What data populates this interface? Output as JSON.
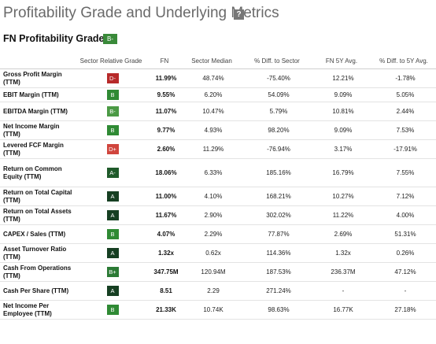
{
  "header": {
    "title": "Profitability Grade and Underlying Metrics",
    "help_icon": "?",
    "subtitle": "FN Profitability Grade",
    "overall_grade": "B-",
    "overall_grade_color": "#3a8a3a"
  },
  "table": {
    "columns": [
      "",
      "Sector Relative Grade",
      "FN",
      "Sector Median",
      "% Diff. to Sector",
      "FN 5Y Avg.",
      "% Diff. to 5Y Avg."
    ],
    "rows": [
      {
        "metric": "Gross Profit Margin (TTM)",
        "grade": "D-",
        "grade_color": "#b72a2a",
        "fn": "11.99%",
        "sector_median": "48.74%",
        "diff_sector": "-75.40%",
        "avg_5y": "12.21%",
        "diff_5y": "-1.78%"
      },
      {
        "metric": "EBIT Margin (TTM)",
        "grade": "B",
        "grade_color": "#2f8a34",
        "fn": "9.55%",
        "sector_median": "6.20%",
        "diff_sector": "54.09%",
        "avg_5y": "9.09%",
        "diff_5y": "5.05%"
      },
      {
        "metric": "EBITDA Margin (TTM)",
        "grade": "B-",
        "grade_color": "#4b9a45",
        "fn": "11.07%",
        "sector_median": "10.47%",
        "diff_sector": "5.79%",
        "avg_5y": "10.81%",
        "diff_5y": "2.44%"
      },
      {
        "metric": "Net Income Margin (TTM)",
        "grade": "B",
        "grade_color": "#2f8a34",
        "fn": "9.77%",
        "sector_median": "4.93%",
        "diff_sector": "98.20%",
        "avg_5y": "9.09%",
        "diff_5y": "7.53%"
      },
      {
        "metric": "Levered FCF Margin (TTM)",
        "grade": "D+",
        "grade_color": "#d0453d",
        "fn": "2.60%",
        "sector_median": "11.29%",
        "diff_sector": "-76.94%",
        "avg_5y": "3.17%",
        "diff_5y": "-17.91%"
      },
      {
        "metric": "Return on Common Equity (TTM)",
        "grade": "A-",
        "grade_color": "#1f5a2a",
        "fn": "18.06%",
        "sector_median": "6.33%",
        "diff_sector": "185.16%",
        "avg_5y": "16.79%",
        "diff_5y": "7.55%"
      },
      {
        "metric": "Return on Total Capital (TTM)",
        "grade": "A",
        "grade_color": "#163f22",
        "fn": "11.00%",
        "sector_median": "4.10%",
        "diff_sector": "168.21%",
        "avg_5y": "10.27%",
        "diff_5y": "7.12%"
      },
      {
        "metric": "Return on Total Assets (TTM)",
        "grade": "A",
        "grade_color": "#163f22",
        "fn": "11.67%",
        "sector_median": "2.90%",
        "diff_sector": "302.02%",
        "avg_5y": "11.22%",
        "diff_5y": "4.00%"
      },
      {
        "metric": "CAPEX / Sales (TTM)",
        "grade": "B",
        "grade_color": "#2f8a34",
        "fn": "4.07%",
        "sector_median": "2.29%",
        "diff_sector": "77.87%",
        "avg_5y": "2.69%",
        "diff_5y": "51.31%"
      },
      {
        "metric": "Asset Turnover Ratio (TTM)",
        "grade": "A",
        "grade_color": "#163f22",
        "fn": "1.32x",
        "sector_median": "0.62x",
        "diff_sector": "114.36%",
        "avg_5y": "1.32x",
        "diff_5y": "0.26%"
      },
      {
        "metric": "Cash From Operations (TTM)",
        "grade": "B+",
        "grade_color": "#2b7a35",
        "fn": "347.75M",
        "sector_median": "120.94M",
        "diff_sector": "187.53%",
        "avg_5y": "236.37M",
        "diff_5y": "47.12%"
      },
      {
        "metric": "Cash Per Share (TTM)",
        "grade": "A",
        "grade_color": "#163f22",
        "fn": "8.51",
        "sector_median": "2.29",
        "diff_sector": "271.24%",
        "avg_5y": "-",
        "diff_5y": "-"
      },
      {
        "metric": "Net Income Per Employee (TTM)",
        "grade": "B",
        "grade_color": "#2f8a34",
        "fn": "21.33K",
        "sector_median": "10.74K",
        "diff_sector": "98.63%",
        "avg_5y": "16.77K",
        "diff_5y": "27.18%"
      }
    ]
  }
}
